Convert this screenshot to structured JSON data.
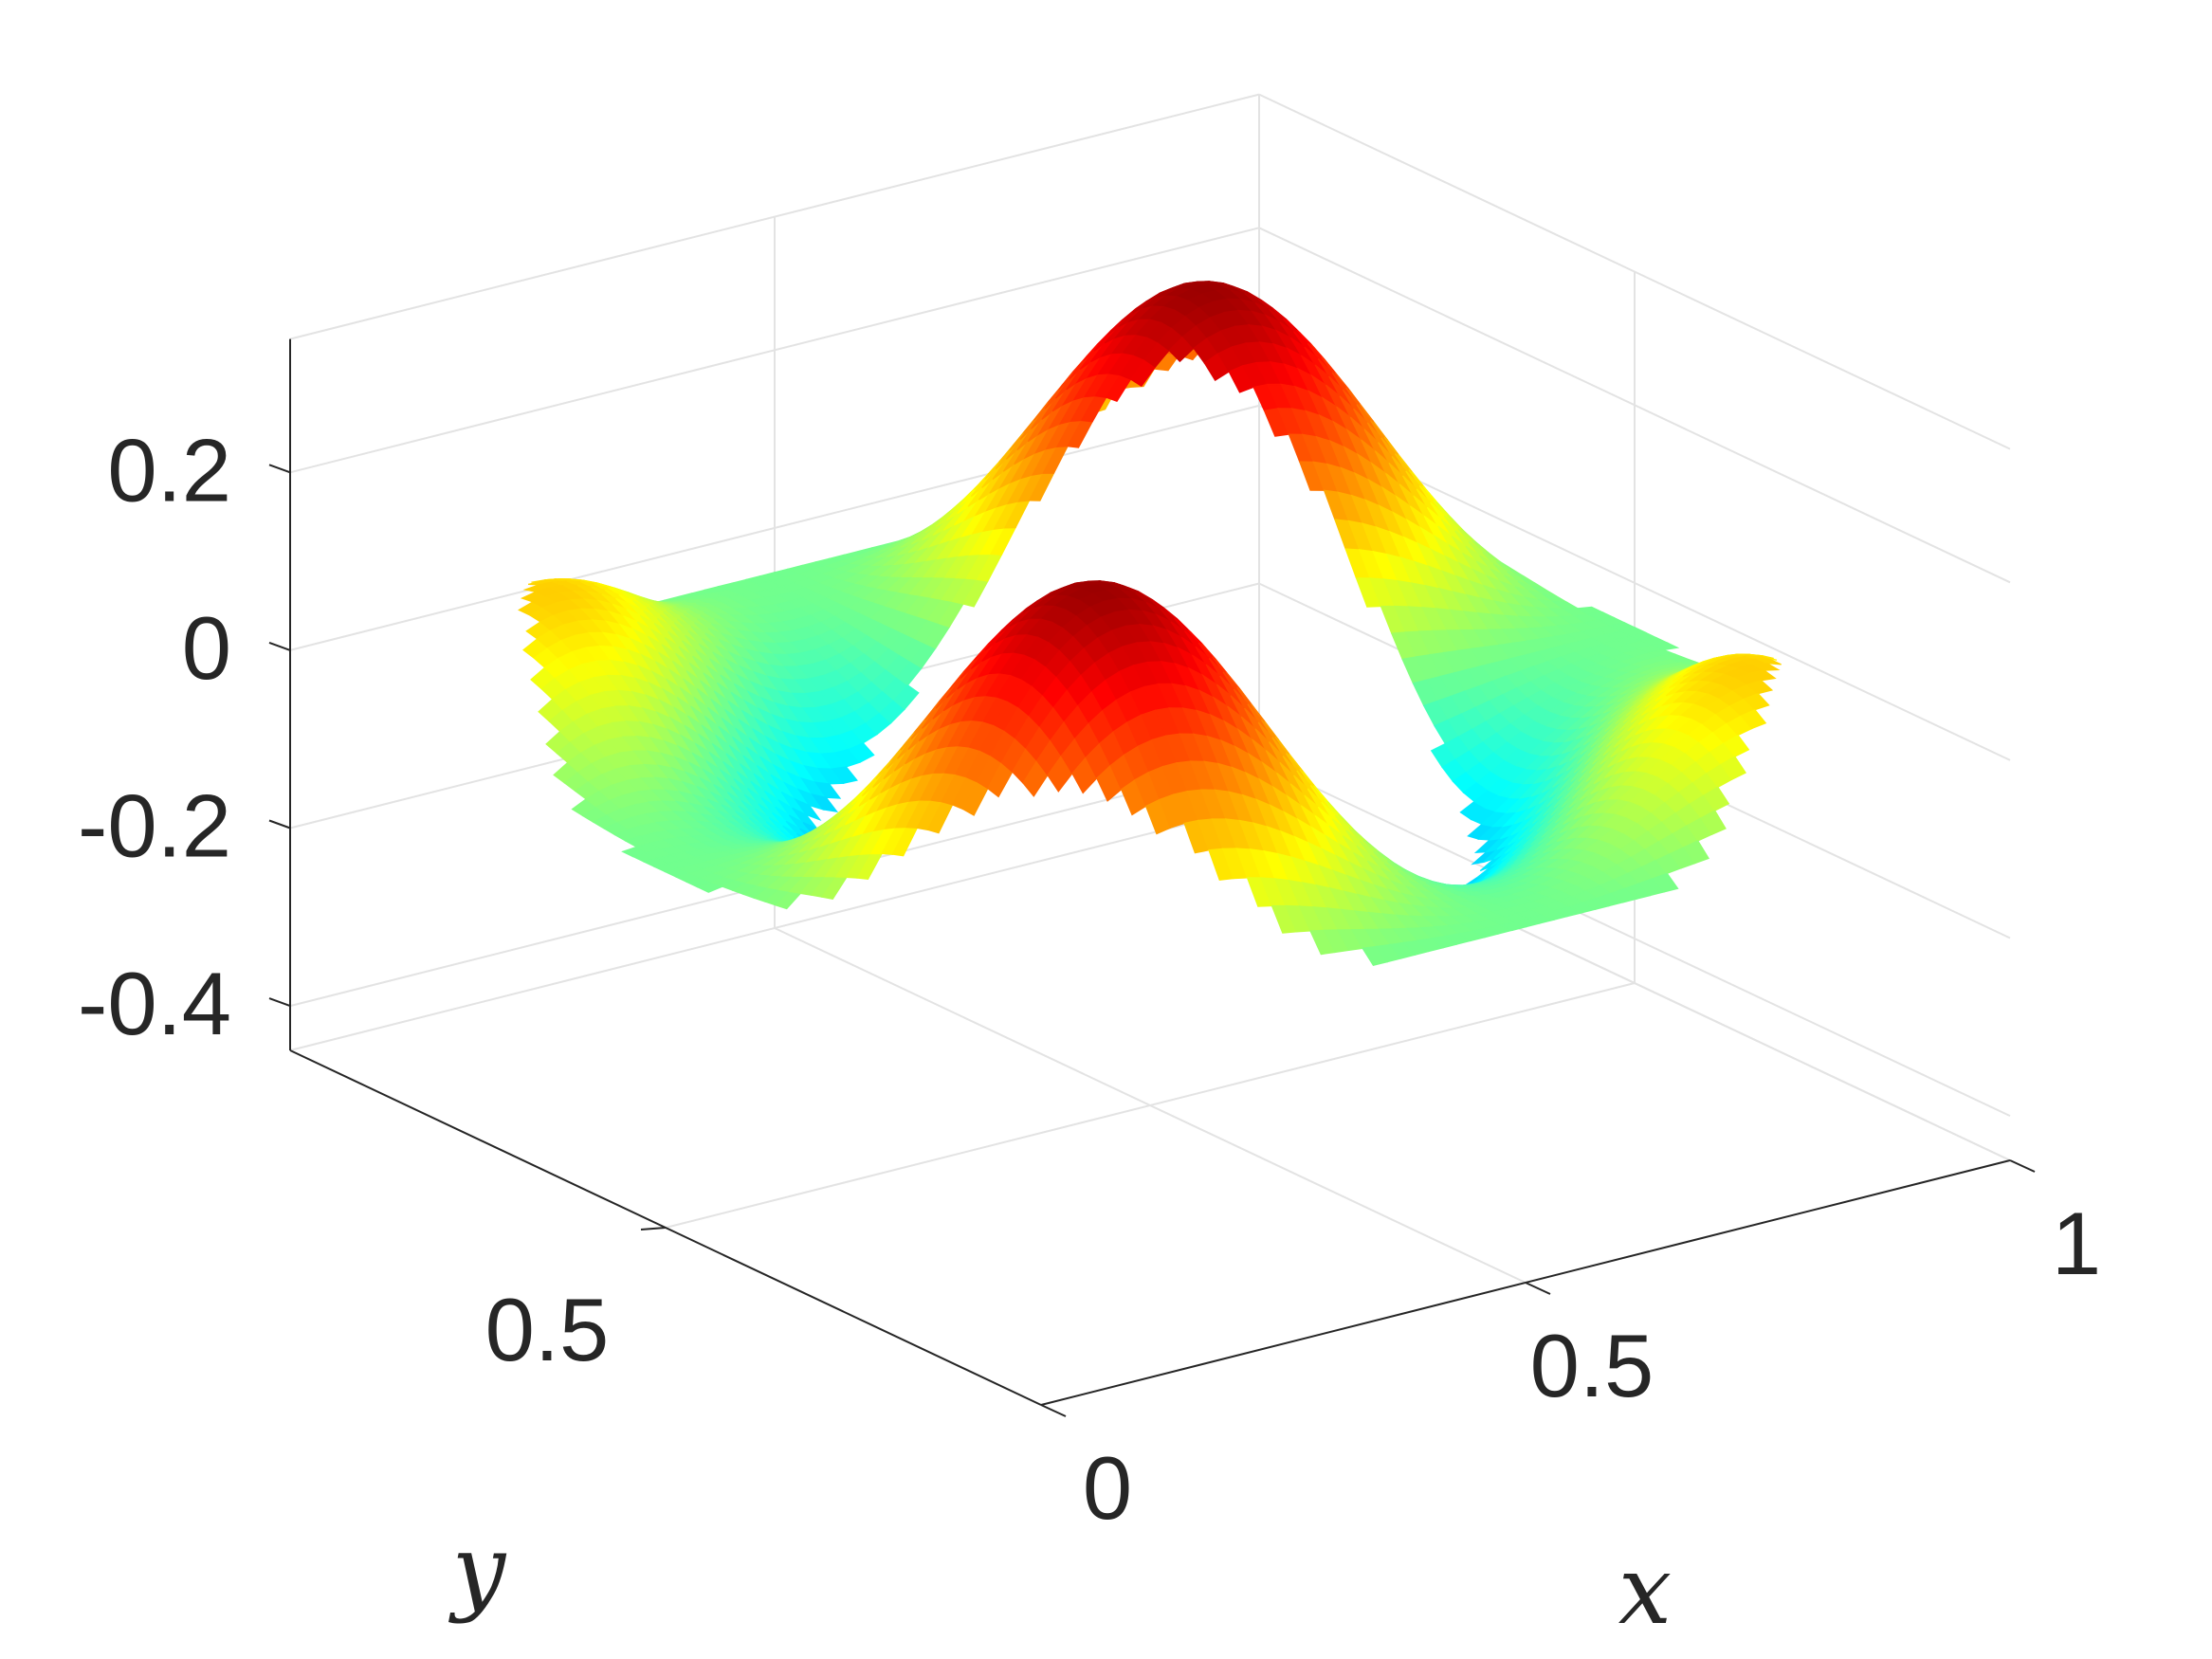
{
  "chart_data": {
    "type": "surface",
    "colormap": "jet",
    "grid": true,
    "xlabel": "x",
    "ylabel": "y",
    "zlabel": "",
    "xlim": [
      0,
      1
    ],
    "ylim": [
      0,
      1
    ],
    "zlim": [
      -0.45,
      0.35
    ],
    "xticks": [
      {
        "value": 0,
        "label": "0"
      },
      {
        "value": 0.5,
        "label": "0.5"
      },
      {
        "value": 1,
        "label": "1"
      }
    ],
    "yticks": [
      {
        "value": 0.5,
        "label": "0.5"
      }
    ],
    "zticks": [
      {
        "value": 0.2,
        "label": "0.2"
      },
      {
        "value": 0,
        "label": "0"
      },
      {
        "value": -0.2,
        "label": "-0.2"
      },
      {
        "value": -0.4,
        "label": "-0.4"
      }
    ],
    "surface": {
      "description": "Periodic multi-peak surface with two peaks near 0.3 and valleys near -0.4, clipped to a thin band around a closed curve"
    },
    "colors": {
      "grid": "#e3e3e3",
      "axis": "#262626",
      "text": "#262626"
    }
  }
}
